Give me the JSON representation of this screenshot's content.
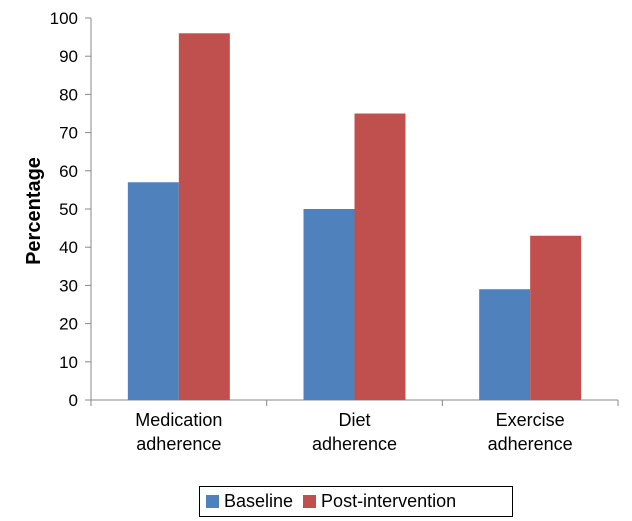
{
  "chart_data": {
    "type": "bar",
    "categories": [
      [
        "Medication",
        "adherence"
      ],
      [
        "Diet",
        "adherence"
      ],
      [
        "Exercise",
        "adherence"
      ]
    ],
    "series": [
      {
        "name": "Baseline",
        "color": "#4f81bd",
        "values": [
          57,
          50,
          29
        ]
      },
      {
        "name": "Post-intervention",
        "color": "#c0504d",
        "values": [
          96,
          75,
          43
        ]
      }
    ],
    "ylabel": "Percentage",
    "xlabel": "",
    "ylim": [
      0,
      100
    ],
    "yticks": [
      0,
      10,
      20,
      30,
      40,
      50,
      60,
      70,
      80,
      90,
      100
    ],
    "legend_position": "bottom",
    "grid": false
  }
}
